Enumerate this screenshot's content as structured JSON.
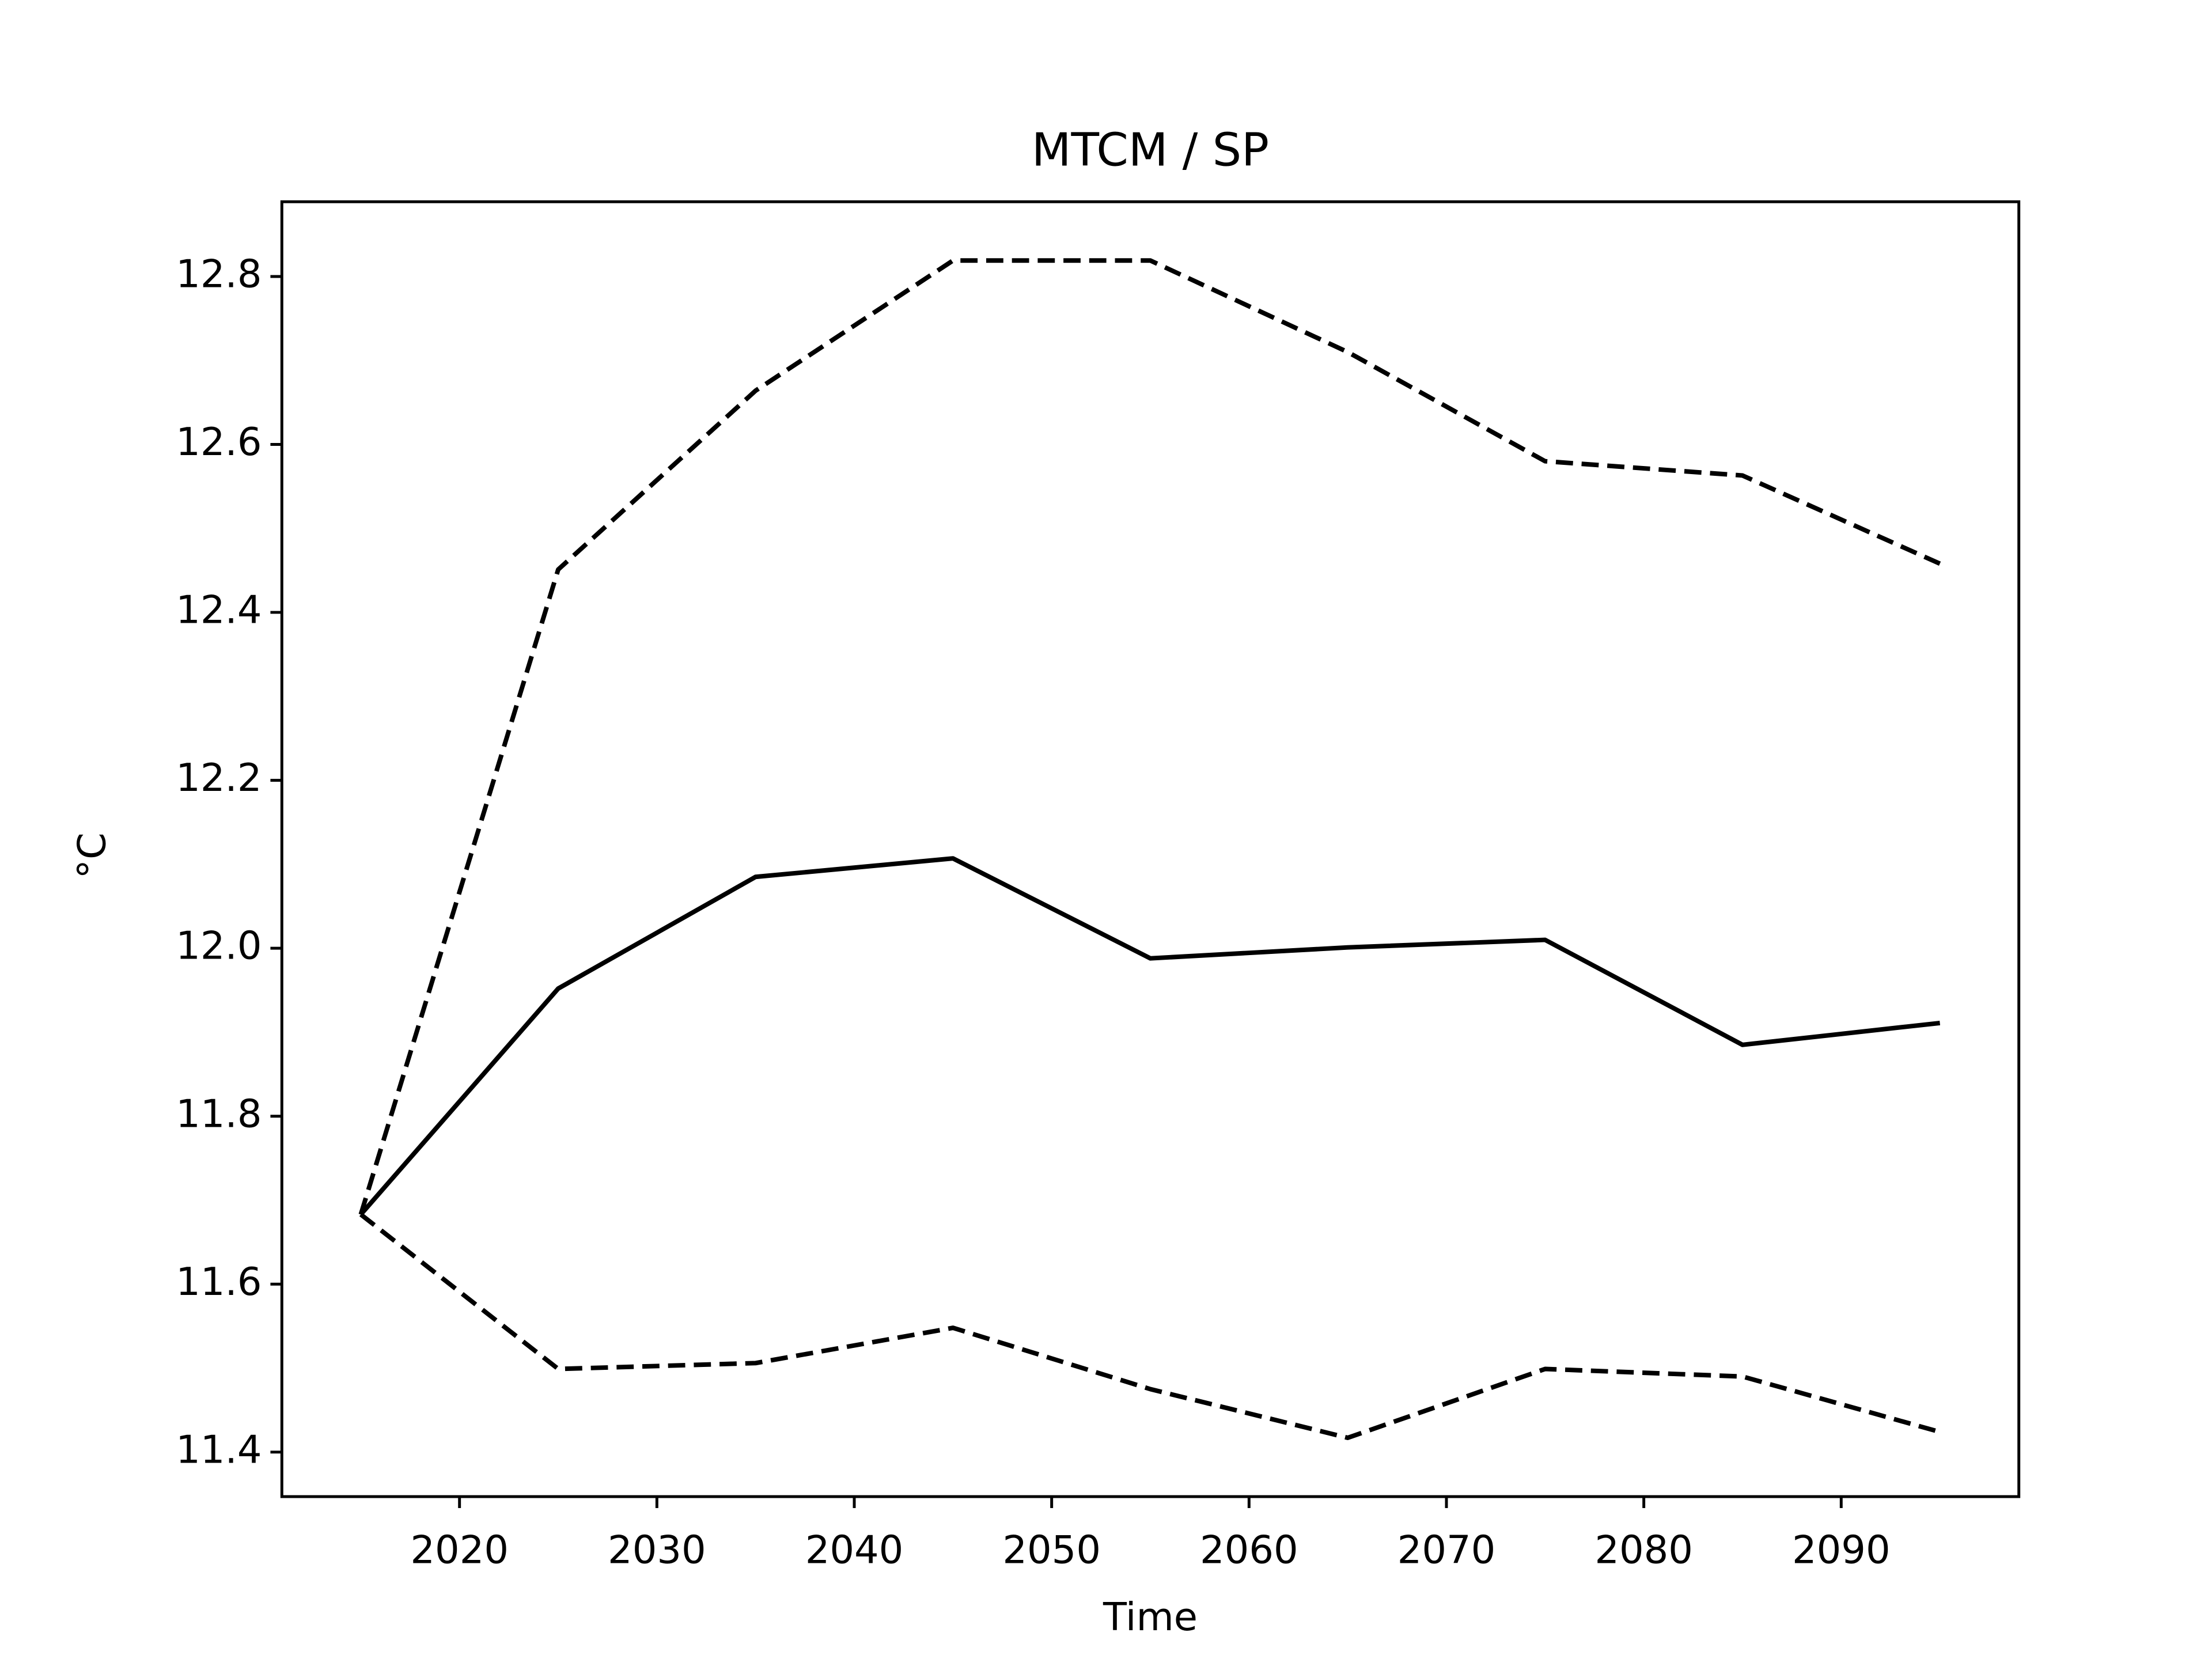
{
  "chart_data": {
    "type": "line",
    "title": "MTCM / SP",
    "xlabel": "Time",
    "ylabel": "°C",
    "x": [
      2015,
      2025,
      2035,
      2045,
      2055,
      2065,
      2075,
      2085,
      2095
    ],
    "series": [
      {
        "color": "#000000",
        "linestyle": "solid",
        "values": [
          11.683,
          11.952,
          12.085,
          12.107,
          11.988,
          12.001,
          12.01,
          11.885,
          11.911
        ]
      },
      {
        "color": "#000000",
        "linestyle": "dashed",
        "values": [
          11.683,
          12.451,
          12.664,
          12.819,
          12.819,
          12.71,
          12.58,
          12.563,
          12.458
        ]
      },
      {
        "color": "#000000",
        "linestyle": "dashed",
        "values": [
          11.683,
          11.499,
          11.506,
          11.548,
          11.475,
          11.417,
          11.499,
          11.49,
          11.424
        ]
      }
    ],
    "xlim": [
      2011,
      2099
    ],
    "xticks": [
      2020,
      2030,
      2040,
      2050,
      2060,
      2070,
      2080,
      2090
    ],
    "ylim": [
      11.347,
      12.889
    ],
    "yticks": [
      11.4,
      11.6,
      11.8,
      {
        "value": 12,
        "label": "12.0"
      },
      12.2,
      12.4,
      12.6,
      12.8
    ],
    "grid": false
  }
}
